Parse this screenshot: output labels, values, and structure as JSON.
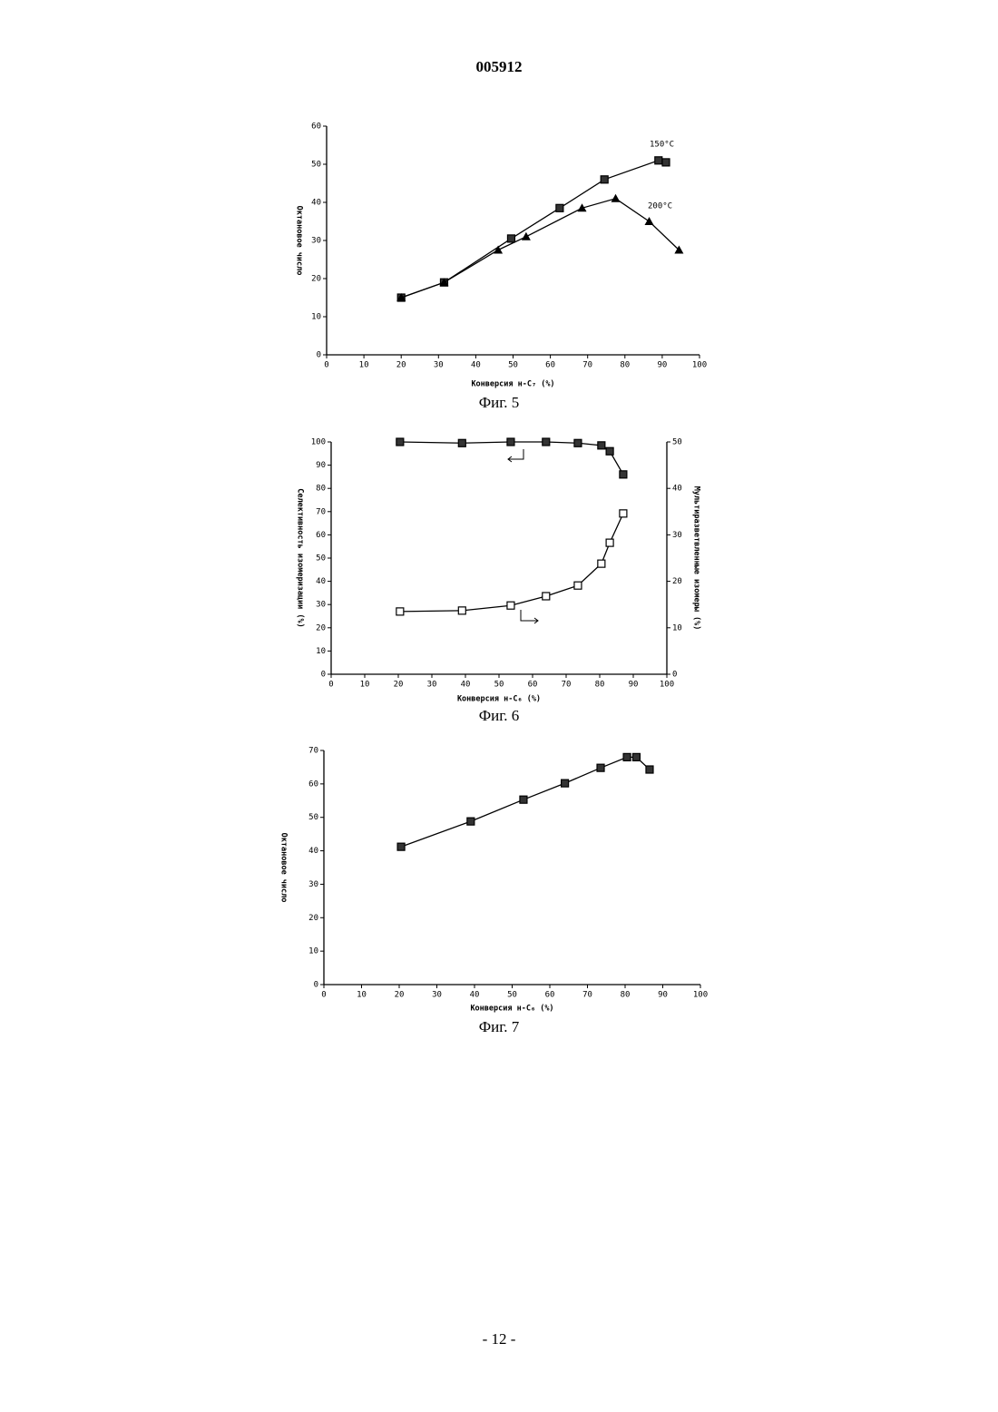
{
  "header": {
    "number": "005912"
  },
  "chart_data": [
    {
      "type": "line",
      "caption": "Фиг. 5",
      "x_label": "Конверсия н-C₇ (%)",
      "y_label": "Октановое число",
      "xlim": [
        0,
        100
      ],
      "xticks": [
        0,
        10,
        20,
        30,
        40,
        50,
        60,
        70,
        80,
        90,
        100
      ],
      "ylim": [
        0,
        60
      ],
      "yticks": [
        0,
        10,
        20,
        30,
        40,
        50,
        60
      ],
      "series": [
        {
          "name": "150°C",
          "color": "#000",
          "marker": "square",
          "x": [
            20,
            31.5,
            49.5,
            62.5,
            74.5,
            89,
            91
          ],
          "values": [
            15,
            19,
            30.5,
            38.5,
            46,
            51,
            50.5
          ]
        },
        {
          "name": "200°C",
          "color": "#000",
          "marker": "triangle",
          "x": [
            20,
            31.5,
            46,
            53.5,
            68.5,
            77.5,
            86.5,
            94.5
          ],
          "values": [
            15,
            19,
            27.5,
            31,
            38.5,
            41,
            35,
            27.5
          ]
        }
      ]
    },
    {
      "type": "line",
      "caption": "Фиг. 6",
      "x_label": "Конверсия н-C₆ (%)",
      "y_label": "Селективность изомеризации (%)",
      "y2_label": "Мультиразветвленные изомеры (%)",
      "xlim": [
        0,
        100
      ],
      "xticks": [
        0,
        10,
        20,
        30,
        40,
        50,
        60,
        70,
        80,
        90,
        100
      ],
      "ylim": [
        0,
        100
      ],
      "yticks": [
        0,
        10,
        20,
        30,
        40,
        50,
        60,
        70,
        80,
        90,
        100
      ],
      "y2lim": [
        0,
        50
      ],
      "y2ticks": [
        0,
        10,
        20,
        30,
        40,
        50
      ],
      "series": [
        {
          "color": "#000",
          "marker": "square",
          "x": [
            20.5,
            39,
            53.5,
            64,
            73.5,
            80.5,
            83,
            87
          ],
          "values": [
            100,
            99.5,
            100,
            100,
            99.5,
            98.5,
            96,
            86
          ]
        },
        {
          "color": "#000",
          "marker": "open-square",
          "axis": "y2",
          "x": [
            20.5,
            39,
            53.5,
            64,
            73.5,
            80.5,
            83,
            87
          ],
          "values": [
            13.5,
            13.7,
            14.8,
            16.8,
            19.1,
            23.8,
            28.3,
            34.6
          ]
        }
      ]
    },
    {
      "type": "line",
      "caption": "Фиг. 7",
      "x_label": "Конверсия н-C₆ (%)",
      "y_label": "Октановое число",
      "xlim": [
        0,
        100
      ],
      "xticks": [
        0,
        10,
        20,
        30,
        40,
        50,
        60,
        70,
        80,
        90,
        100
      ],
      "ylim": [
        0,
        70
      ],
      "yticks": [
        0,
        10,
        20,
        30,
        40,
        50,
        60,
        70
      ],
      "series": [
        {
          "color": "#000",
          "marker": "square",
          "x": [
            20.5,
            39,
            53,
            64,
            73.5,
            80.5,
            83,
            86.5
          ],
          "values": [
            41.2,
            48.8,
            55.3,
            60.2,
            64.8,
            68,
            68,
            64.3
          ]
        }
      ]
    }
  ],
  "footer": {
    "page": "- 12 -"
  }
}
